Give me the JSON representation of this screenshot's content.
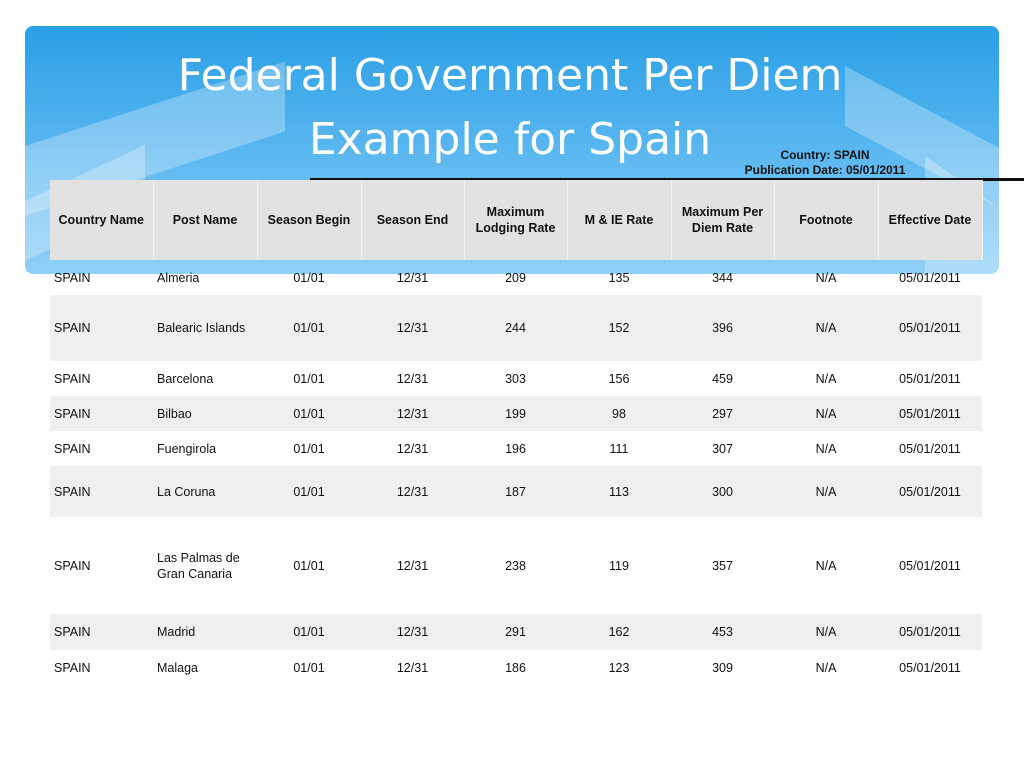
{
  "slide": {
    "title_line1": "Federal Government Per Diem",
    "title_line2": "Example for Spain",
    "country_label": "Country: SPAIN",
    "publication_label": "Publication Date: 05/01/2011"
  },
  "table": {
    "headers": [
      "Country Name",
      "Post Name",
      "Season Begin",
      "Season End",
      "Maximum Lodging Rate",
      "M & IE Rate",
      "Maximum Per Diem Rate",
      "Footnote",
      "Effective Date"
    ],
    "rows": [
      [
        "SPAIN",
        "Almeria",
        "01/01",
        "12/31",
        "209",
        "135",
        "344",
        "N/A",
        "05/01/2011"
      ],
      [
        "SPAIN",
        "Balearic Islands",
        "01/01",
        "12/31",
        "244",
        "152",
        "396",
        "N/A",
        "05/01/2011"
      ],
      [
        "SPAIN",
        "Barcelona",
        "01/01",
        "12/31",
        "303",
        "156",
        "459",
        "N/A",
        "05/01/2011"
      ],
      [
        "SPAIN",
        "Bilbao",
        "01/01",
        "12/31",
        "199",
        "98",
        "297",
        "N/A",
        "05/01/2011"
      ],
      [
        "SPAIN",
        "Fuengirola",
        "01/01",
        "12/31",
        "196",
        "111",
        "307",
        "N/A",
        "05/01/2011"
      ],
      [
        "SPAIN",
        "La Coruna",
        "01/01",
        "12/31",
        "187",
        "113",
        "300",
        "N/A",
        "05/01/2011"
      ],
      [
        "SPAIN",
        "Las Palmas de Gran Canaria",
        "01/01",
        "12/31",
        "238",
        "119",
        "357",
        "N/A",
        "05/01/2011"
      ],
      [
        "SPAIN",
        "Madrid",
        "01/01",
        "12/31",
        "291",
        "162",
        "453",
        "N/A",
        "05/01/2011"
      ],
      [
        "SPAIN",
        "Malaga",
        "01/01",
        "12/31",
        "186",
        "123",
        "309",
        "N/A",
        "05/01/2011"
      ]
    ]
  }
}
